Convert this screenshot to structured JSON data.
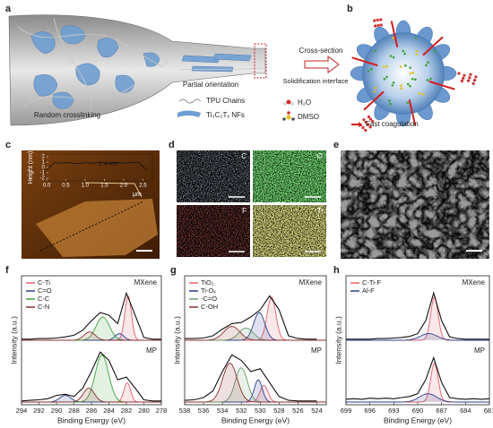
{
  "panels": {
    "a": {
      "label": "a",
      "random": "Random crosslinking",
      "partial": "Partial orientation",
      "tpu": "TPU Chains",
      "nfs": "Ti₃C₂Tₓ NFs",
      "cross_section": "Cross-section",
      "interface": "Solidification interface"
    },
    "b": {
      "label": "b",
      "h2o": "H₂O",
      "dmso": "DMSO",
      "coagulation": "Fast coagulation"
    },
    "c": {
      "label": "c",
      "y_label": "Height (nm)",
      "x_unit": "μm",
      "annotation": "1.4 nm",
      "xlim": [
        0,
        2.7
      ],
      "xticks": [
        {
          "value": 0,
          "label": "0.0"
        },
        0.5,
        {
          "value": 1,
          "label": "1.0"
        },
        1.5,
        {
          "value": 2,
          "label": "2.0"
        },
        2.5
      ],
      "ylim": [
        -2,
        2
      ],
      "yticks": [
        2,
        1,
        0,
        -1,
        -2
      ],
      "x": [
        0,
        0.2,
        0.4,
        0.6,
        0.8,
        1.0,
        1.2,
        1.4,
        1.6,
        1.8,
        2.0,
        2.2,
        2.4,
        2.6
      ],
      "values": [
        -0.5,
        0.9,
        0.8,
        0.9,
        0.7,
        0.9,
        0.8,
        0.9,
        0.8,
        0.9,
        0.8,
        0.9,
        0.9,
        -0.5
      ]
    },
    "d": {
      "label": "d",
      "maps": [
        "C",
        "O",
        "F",
        "Ti"
      ]
    },
    "e": {
      "label": "e"
    },
    "f": {
      "label": "f",
      "x_label": "Binding Energy (eV)",
      "y_label": "Intensity (a.u.)",
      "xlim": [
        294,
        278
      ],
      "xticks": [
        294,
        292,
        290,
        288,
        286,
        284,
        282,
        280,
        278
      ],
      "x": [
        294,
        293,
        292,
        291,
        290,
        289,
        288,
        287,
        286,
        285,
        284,
        283,
        282,
        281,
        280,
        279,
        278
      ],
      "legend": [
        {
          "name": "C-Ti",
          "color": "#e8606a"
        },
        {
          "name": "C=O",
          "color": "#2a3f8f"
        },
        {
          "name": "C-C",
          "color": "#3aa13a"
        },
        {
          "name": "C-N",
          "color": "#8b2d2d"
        }
      ],
      "spectra": [
        {
          "name": "MXene",
          "values": [
            0.02,
            0.02,
            0.03,
            0.03,
            0.04,
            0.06,
            0.09,
            0.18,
            0.35,
            0.5,
            0.45,
            0.3,
            0.85,
            0.45,
            0.05,
            0.02,
            0.02
          ],
          "components": [
            {
              "center": 281.8,
              "height": 0.8,
              "fwhm": 0.9
            },
            {
              "center": 282.8,
              "height": 0.12,
              "fwhm": 1.2
            },
            {
              "center": 284.7,
              "height": 0.42,
              "fwhm": 1.8
            },
            {
              "center": 286.2,
              "height": 0.15,
              "fwhm": 1.5
            }
          ]
        },
        {
          "name": "MP",
          "values": [
            0.02,
            0.03,
            0.04,
            0.06,
            0.12,
            0.14,
            0.1,
            0.25,
            0.55,
            0.9,
            0.75,
            0.4,
            0.45,
            0.25,
            0.04,
            0.02,
            0.02
          ],
          "components": [
            {
              "center": 281.9,
              "height": 0.35,
              "fwhm": 0.9
            },
            {
              "center": 289,
              "height": 0.12,
              "fwhm": 1.5
            },
            {
              "center": 284.8,
              "height": 0.85,
              "fwhm": 1.8
            },
            {
              "center": 286.3,
              "height": 0.25,
              "fwhm": 1.5
            }
          ]
        }
      ]
    },
    "g": {
      "label": "g",
      "x_label": "Binding Energy (eV)",
      "y_label": "Intensity (a.u.)",
      "xlim": [
        538,
        523
      ],
      "xticks": [
        538,
        536,
        534,
        532,
        530,
        528,
        526,
        524
      ],
      "x": [
        538,
        537,
        536,
        535,
        534,
        533,
        532,
        531,
        530,
        529,
        528,
        527,
        526,
        525,
        524
      ],
      "legend": [
        {
          "name": "TiO₂",
          "color": "#e8606a"
        },
        {
          "name": "Ti-Oₓ",
          "color": "#2a3f8f"
        },
        {
          "name": "-C=O",
          "color": "#6a9a6a"
        },
        {
          "name": "C-OH",
          "color": "#8b2d2d"
        }
      ],
      "spectra": [
        {
          "name": "MXene",
          "values": [
            0.03,
            0.03,
            0.04,
            0.08,
            0.2,
            0.3,
            0.32,
            0.42,
            0.55,
            0.8,
            0.55,
            0.08,
            0.03,
            0.02,
            0.02
          ],
          "components": [
            {
              "center": 528.8,
              "height": 0.78,
              "fwhm": 1.1
            },
            {
              "center": 530.1,
              "height": 0.5,
              "fwhm": 1.4
            },
            {
              "center": 531.5,
              "height": 0.22,
              "fwhm": 1.8
            },
            {
              "center": 533,
              "height": 0.25,
              "fwhm": 2
            }
          ]
        },
        {
          "name": "MP",
          "values": [
            0.03,
            0.04,
            0.08,
            0.2,
            0.55,
            0.85,
            0.75,
            0.55,
            0.6,
            0.35,
            0.1,
            0.03,
            0.02,
            0.02,
            0.02
          ],
          "components": [
            {
              "center": 529.6,
              "height": 0.3,
              "fwhm": 1
            },
            {
              "center": 530.2,
              "height": 0.4,
              "fwhm": 1
            },
            {
              "center": 532,
              "height": 0.62,
              "fwhm": 1.5
            },
            {
              "center": 533.2,
              "height": 0.7,
              "fwhm": 1.8
            }
          ]
        }
      ]
    },
    "h": {
      "label": "h",
      "x_label": "Binding Energy (eV)",
      "y_label": "Intensity (a.u.)",
      "xlim": [
        699,
        681
      ],
      "xticks": [
        699,
        696,
        693,
        690,
        687,
        684,
        681
      ],
      "x": [
        699,
        698,
        697,
        696,
        695,
        694,
        693,
        692,
        691,
        690,
        689,
        688,
        687,
        686,
        685,
        684,
        683,
        682,
        681
      ],
      "legend": [
        {
          "name": "C-Ti-F",
          "color": "#e8606a"
        },
        {
          "name": "Al-F",
          "color": "#2a3f8f"
        }
      ],
      "spectra": [
        {
          "name": "MXene",
          "values": [
            0.02,
            0.02,
            0.02,
            0.02,
            0.03,
            0.03,
            0.04,
            0.05,
            0.07,
            0.12,
            0.35,
            0.85,
            0.35,
            0.06,
            0.03,
            0.02,
            0.02,
            0.02,
            0.02
          ],
          "components": [
            {
              "center": 687.9,
              "height": 0.78,
              "fwhm": 1.1
            },
            {
              "center": 688.6,
              "height": 0.12,
              "fwhm": 2.5
            }
          ]
        },
        {
          "name": "MP",
          "values": [
            0.05,
            0.06,
            0.05,
            0.07,
            0.06,
            0.07,
            0.06,
            0.08,
            0.1,
            0.15,
            0.4,
            0.8,
            0.35,
            0.08,
            0.06,
            0.05,
            0.06,
            0.05,
            0.06
          ],
          "components": [
            {
              "center": 687.9,
              "height": 0.7,
              "fwhm": 1.1
            },
            {
              "center": 688.7,
              "height": 0.15,
              "fwhm": 2.5
            }
          ]
        }
      ]
    }
  }
}
